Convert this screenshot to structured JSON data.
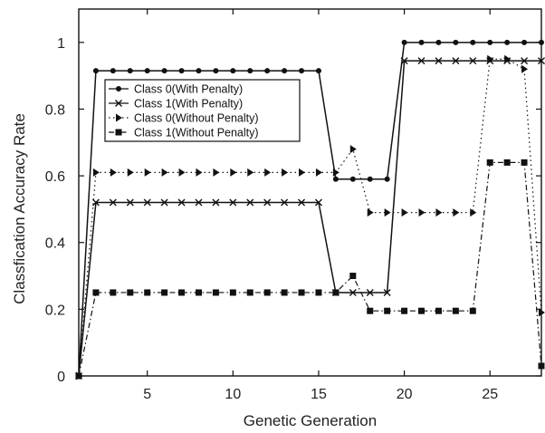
{
  "chart_data": {
    "type": "line",
    "title": "",
    "xlabel": "Genetic Generation",
    "ylabel": "Classfication Accuracy Rate",
    "xlim": [
      1,
      28
    ],
    "ylim": [
      0,
      1.1
    ],
    "xticks": [
      5,
      10,
      15,
      20,
      25
    ],
    "yticks": [
      0,
      0.2,
      0.4,
      0.6,
      0.8,
      1
    ],
    "ytick_labels": [
      "0",
      "0.2",
      "0.4",
      "0.6",
      "0.8",
      "1"
    ],
    "grid": false,
    "legend_position": "upper-left",
    "x": [
      1,
      2,
      3,
      4,
      5,
      6,
      7,
      8,
      9,
      10,
      11,
      12,
      13,
      14,
      15,
      16,
      17,
      18,
      19,
      20,
      21,
      22,
      23,
      24,
      25,
      26,
      27,
      28
    ],
    "series": [
      {
        "name": "Class 0(With Penalty)",
        "line": "solid",
        "marker": "circle",
        "color": "#111111",
        "values": [
          0,
          0.915,
          0.915,
          0.915,
          0.915,
          0.915,
          0.915,
          0.915,
          0.915,
          0.915,
          0.915,
          0.915,
          0.915,
          0.915,
          0.915,
          0.59,
          0.59,
          0.59,
          0.59,
          1.0,
          1.0,
          1.0,
          1.0,
          1.0,
          1.0,
          1.0,
          1.0,
          1.0
        ]
      },
      {
        "name": "Class 1(With Penalty)",
        "line": "solid",
        "marker": "x",
        "color": "#111111",
        "values": [
          0,
          0.52,
          0.52,
          0.52,
          0.52,
          0.52,
          0.52,
          0.52,
          0.52,
          0.52,
          0.52,
          0.52,
          0.52,
          0.52,
          0.52,
          0.25,
          0.25,
          0.25,
          0.25,
          0.945,
          0.945,
          0.945,
          0.945,
          0.945,
          0.945,
          0.945,
          0.945,
          0.945
        ]
      },
      {
        "name": "Class 0(Without Penalty)",
        "line": "dotted",
        "marker": "triangle-right",
        "color": "#111111",
        "values": [
          0,
          0.61,
          0.61,
          0.61,
          0.61,
          0.61,
          0.61,
          0.61,
          0.61,
          0.61,
          0.61,
          0.61,
          0.61,
          0.61,
          0.61,
          0.61,
          0.68,
          0.49,
          0.49,
          0.49,
          0.49,
          0.49,
          0.49,
          0.49,
          0.95,
          0.95,
          0.92,
          0.19
        ]
      },
      {
        "name": "Class 1(Without Penalty)",
        "line": "dashdot",
        "marker": "square",
        "color": "#111111",
        "values": [
          0,
          0.25,
          0.25,
          0.25,
          0.25,
          0.25,
          0.25,
          0.25,
          0.25,
          0.25,
          0.25,
          0.25,
          0.25,
          0.25,
          0.25,
          0.25,
          0.3,
          0.195,
          0.195,
          0.195,
          0.195,
          0.195,
          0.195,
          0.195,
          0.64,
          0.64,
          0.64,
          0.03
        ]
      }
    ]
  }
}
